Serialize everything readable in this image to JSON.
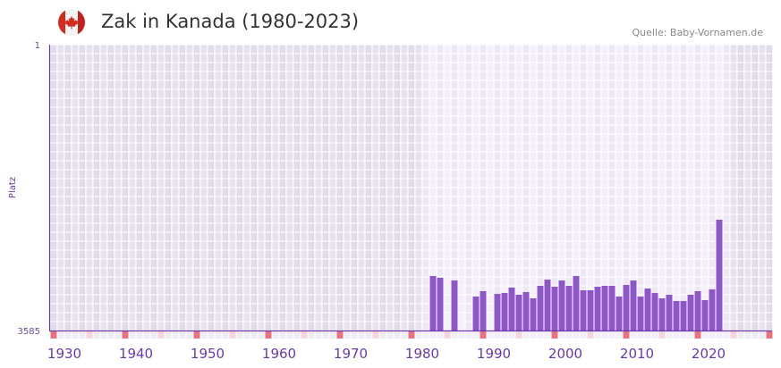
{
  "header": {
    "title": "Zak in Kanada (1980-2023)",
    "source": "Quelle: Baby-Vornamen.de",
    "flag_icon": "canada-flag-icon"
  },
  "colors": {
    "bar": "#8e55c8",
    "axis": "#6a3aa8",
    "bg_out": "#e4e0ee",
    "bg_in": "#f1edfa",
    "decade_marker": "#e8737c",
    "half_marker": "#f5d5de"
  },
  "chart_data": {
    "type": "bar",
    "title": "Zak in Kanada (1980-2023)",
    "xlabel": "",
    "ylabel": "Platz",
    "ylim": [
      1,
      3585
    ],
    "y_inverted": true,
    "y_ticks": [
      "1",
      "3585"
    ],
    "xlim": [
      1928,
      2028
    ],
    "x_ticks": [
      1930,
      1940,
      1950,
      1960,
      1970,
      1980,
      1990,
      2000,
      2010,
      2020
    ],
    "highlight_range": [
      1980,
      2022
    ],
    "years": [
      1981,
      1982,
      1984,
      1987,
      1988,
      1990,
      1991,
      1992,
      1993,
      1994,
      1995,
      1996,
      1997,
      1998,
      1999,
      2000,
      2001,
      2002,
      2003,
      2004,
      2005,
      2006,
      2007,
      2008,
      2009,
      2010,
      2011,
      2012,
      2013,
      2014,
      2015,
      2016,
      2017,
      2018,
      2019,
      2020,
      2021
    ],
    "values": [
      2902,
      2924,
      2958,
      3159,
      3092,
      3126,
      3115,
      3047,
      3137,
      3103,
      3182,
      3025,
      2947,
      3036,
      2958,
      3025,
      2902,
      3081,
      3081,
      3036,
      3025,
      3025,
      3159,
      3014,
      2958,
      3159,
      3059,
      3115,
      3182,
      3137,
      3215,
      3215,
      3137,
      3092,
      3204,
      3070,
      2196
    ]
  }
}
